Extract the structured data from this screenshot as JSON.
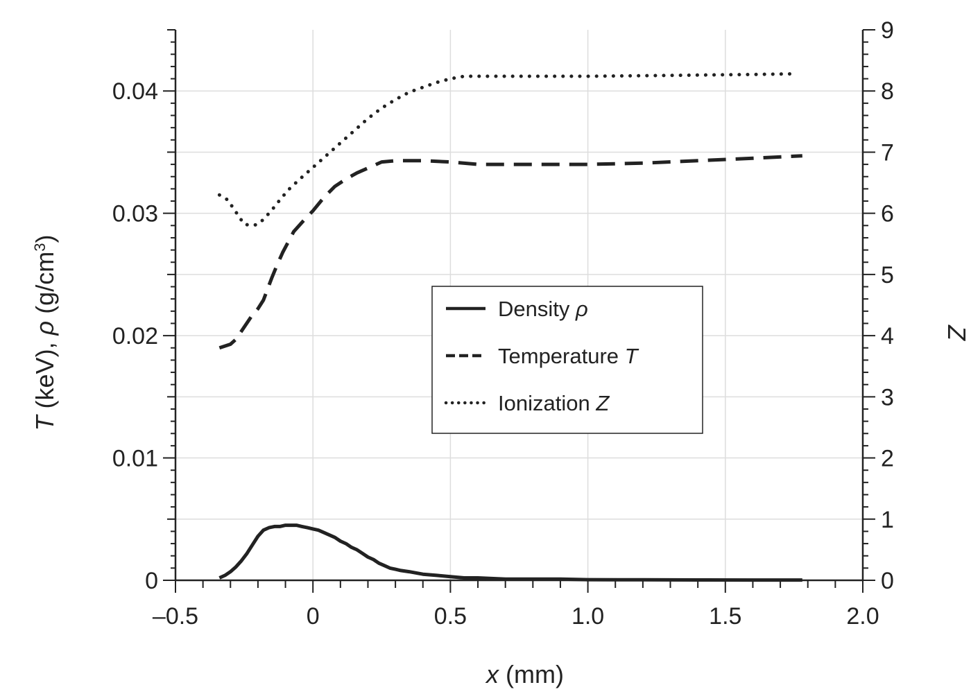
{
  "chart_data": {
    "type": "line",
    "xlabel_var": "x",
    "xlabel_unit": " (mm)",
    "ylabel_left_var1": "T",
    "ylabel_left_mid1": " (keV), ",
    "ylabel_left_var2": "ρ",
    "ylabel_left_mid2": " (g/cm",
    "ylabel_left_sup": "3",
    "ylabel_left_end": ")",
    "ylabel_right": "Z",
    "xlim": [
      -0.5,
      2.0
    ],
    "ylim_left": [
      0,
      0.045
    ],
    "ylim_right": [
      0,
      9
    ],
    "x_ticks": [
      "–0.5",
      "0",
      "0.5",
      "1.0",
      "1.5",
      "2.0"
    ],
    "y_left_ticks": [
      "0",
      "0.01",
      "0.02",
      "0.03",
      "0.04"
    ],
    "y_right_ticks": [
      "0",
      "1",
      "2",
      "3",
      "4",
      "5",
      "6",
      "7",
      "8",
      "9"
    ],
    "grid": true,
    "legend_position": "center-right",
    "series": [
      {
        "name": "Density ",
        "name_var": "ρ",
        "axis": "left",
        "style": "solid",
        "x": [
          -0.34,
          -0.32,
          -0.3,
          -0.28,
          -0.26,
          -0.24,
          -0.22,
          -0.2,
          -0.18,
          -0.16,
          -0.14,
          -0.12,
          -0.1,
          -0.08,
          -0.06,
          -0.04,
          -0.02,
          0.0,
          0.02,
          0.04,
          0.06,
          0.08,
          0.1,
          0.12,
          0.14,
          0.16,
          0.18,
          0.2,
          0.22,
          0.24,
          0.26,
          0.28,
          0.3,
          0.32,
          0.35,
          0.4,
          0.45,
          0.5,
          0.55,
          0.6,
          0.7,
          0.8,
          0.9,
          1.0,
          1.2,
          1.4,
          1.6,
          1.78
        ],
        "y": [
          0.0002,
          0.0004,
          0.0007,
          0.0011,
          0.0016,
          0.0022,
          0.0029,
          0.0036,
          0.0041,
          0.0043,
          0.0044,
          0.0044,
          0.0045,
          0.0045,
          0.0045,
          0.0044,
          0.0043,
          0.0042,
          0.0041,
          0.0039,
          0.0037,
          0.0035,
          0.0032,
          0.003,
          0.0027,
          0.0025,
          0.0022,
          0.0019,
          0.0017,
          0.0014,
          0.0012,
          0.001,
          0.0009,
          0.0008,
          0.0007,
          0.0005,
          0.0004,
          0.0003,
          0.0002,
          0.0002,
          0.0001,
          0.0001,
          0.0001,
          5e-05,
          4e-05,
          3e-05,
          2e-05,
          2e-05
        ]
      },
      {
        "name": "Temperature ",
        "name_var": "T",
        "axis": "left",
        "style": "dashed",
        "x": [
          -0.34,
          -0.3,
          -0.28,
          -0.22,
          -0.2,
          -0.18,
          -0.15,
          -0.13,
          -0.11,
          -0.07,
          -0.03,
          0.0,
          0.04,
          0.08,
          0.12,
          0.16,
          0.2,
          0.25,
          0.3,
          0.4,
          0.5,
          0.6,
          0.7,
          0.85,
          1.0,
          1.2,
          1.4,
          1.6,
          1.78
        ],
        "y": [
          0.019,
          0.0193,
          0.0197,
          0.0217,
          0.0222,
          0.0229,
          0.0247,
          0.0258,
          0.0268,
          0.0285,
          0.0295,
          0.0302,
          0.0313,
          0.0322,
          0.0328,
          0.0333,
          0.0337,
          0.0342,
          0.0343,
          0.0343,
          0.0342,
          0.034,
          0.034,
          0.034,
          0.034,
          0.0341,
          0.0343,
          0.0345,
          0.0347
        ]
      },
      {
        "name": "Ionization ",
        "name_var": "Z",
        "axis": "right",
        "style": "dotted",
        "x": [
          -0.34,
          -0.31,
          -0.28,
          -0.25,
          -0.22,
          -0.2,
          -0.18,
          -0.15,
          -0.12,
          -0.09,
          -0.05,
          0.0,
          0.05,
          0.1,
          0.15,
          0.2,
          0.25,
          0.3,
          0.35,
          0.4,
          0.45,
          0.5,
          0.55,
          0.6,
          0.7,
          0.8,
          1.0,
          1.2,
          1.4,
          1.6,
          1.75
        ],
        "y": [
          6.3,
          6.22,
          6.02,
          5.82,
          5.8,
          5.82,
          5.9,
          6.05,
          6.22,
          6.38,
          6.55,
          6.75,
          6.95,
          7.15,
          7.35,
          7.55,
          7.72,
          7.86,
          7.98,
          8.06,
          8.14,
          8.2,
          8.24,
          8.24,
          8.24,
          8.24,
          8.24,
          8.25,
          8.26,
          8.27,
          8.28
        ]
      }
    ]
  }
}
